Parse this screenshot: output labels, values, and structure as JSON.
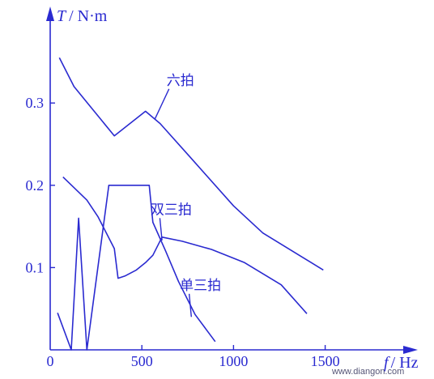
{
  "chart_data": {
    "type": "line",
    "xlim": [
      0,
      1900
    ],
    "ylim": [
      0,
      0.4
    ],
    "xticks": [
      0,
      500,
      1000,
      1500
    ],
    "xtick_labels": [
      "0",
      "500",
      "1000",
      "1500"
    ],
    "yticks": [
      0.1,
      0.2,
      0.3
    ],
    "ytick_labels": [
      "0.1",
      "0.2",
      "0.3"
    ],
    "y_axis_label": {
      "var": "T",
      "unit": "/ N·m"
    },
    "x_axis_label": {
      "var": "f",
      "unit": "/ Hz"
    },
    "series": [
      {
        "name": "六拍",
        "x": [
          50,
          130,
          350,
          520,
          600,
          760,
          1000,
          1160,
          1380,
          1490
        ],
        "y": [
          0.355,
          0.32,
          0.26,
          0.29,
          0.275,
          0.235,
          0.175,
          0.142,
          0.112,
          0.097
        ]
      },
      {
        "name": "双三拍",
        "x": [
          70,
          200,
          260,
          350,
          370,
          410,
          470,
          520,
          560,
          610,
          720,
          880,
          1060,
          1260,
          1400
        ],
        "y": [
          0.21,
          0.182,
          0.162,
          0.123,
          0.087,
          0.09,
          0.097,
          0.106,
          0.115,
          0.137,
          0.132,
          0.122,
          0.106,
          0.079,
          0.044
        ]
      },
      {
        "name": "单三拍",
        "x": [
          40,
          115,
          155,
          200,
          320,
          540,
          560,
          630,
          700,
          790,
          900
        ],
        "y": [
          0.045,
          0.0,
          0.16,
          0.0,
          0.2,
          0.2,
          0.155,
          0.12,
          0.083,
          0.043,
          0.01
        ]
      }
    ],
    "annotations": [
      {
        "text": "六拍",
        "x": 710,
        "y": 0.322,
        "leader_to": [
          570,
          0.28
        ]
      },
      {
        "text": "双三拍",
        "x": 660,
        "y": 0.165,
        "leader_to": [
          610,
          0.133
        ]
      },
      {
        "text": "单三拍",
        "x": 820,
        "y": 0.073,
        "leader_to": [
          770,
          0.04
        ]
      }
    ]
  },
  "watermark": "www.diangon.com"
}
